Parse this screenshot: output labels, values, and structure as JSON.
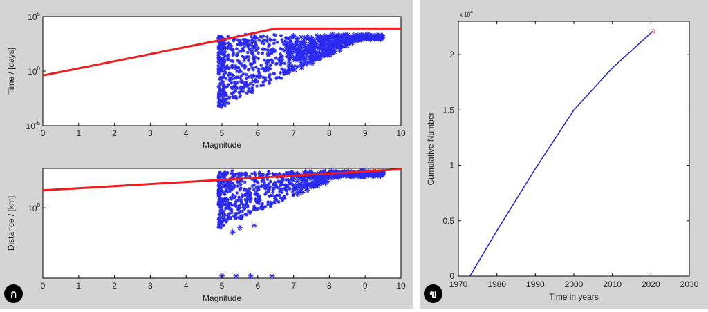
{
  "labels": {
    "left_panel_badge": "ก",
    "right_panel_badge": "ข"
  },
  "colors": {
    "panel_bg": "#d4d4d4",
    "axes_bg": "#ffffff",
    "scatter": "#2a2af0",
    "fit": "#ee1c1c",
    "cumulative_line": "#1c1cd8",
    "end_marker": "#ff6a6a"
  },
  "chart_data": [
    {
      "type": "scatter",
      "title": "",
      "xlabel": "Magnitude",
      "ylabel": "Time / [days]",
      "xlim": [
        0,
        10
      ],
      "ylim_log10": [
        -5,
        5
      ],
      "yscale": "log",
      "xticks": [
        "0",
        "1",
        "2",
        "3",
        "4",
        "5",
        "6",
        "7",
        "8",
        "9",
        "10"
      ],
      "yticks": [
        {
          "base": "10",
          "exp": "5",
          "log10": 5
        },
        {
          "base": "10",
          "exp": "0",
          "log10": 0
        },
        {
          "base": "10",
          "exp": "-5",
          "log10": -5
        }
      ],
      "scatter_x_range": [
        4.9,
        9.5
      ],
      "scatter_log10_range": [
        -3.3,
        3.4
      ],
      "fit_line": {
        "x": [
          0,
          4.9,
          6.5,
          10
        ],
        "log10y": [
          -0.4,
          2.8,
          3.9,
          3.9
        ]
      },
      "grid": false,
      "legend": "none"
    },
    {
      "type": "scatter",
      "title": "",
      "xlabel": "Magnitude",
      "ylabel": "Distance / [km]",
      "xlim": [
        0,
        10
      ],
      "ylim_log10": [
        -1.6,
        0.9
      ],
      "yscale": "log",
      "xticks": [
        "0",
        "1",
        "2",
        "3",
        "4",
        "5",
        "6",
        "7",
        "8",
        "9",
        "10"
      ],
      "yticks": [
        {
          "base": "10",
          "exp": "0",
          "log10": 0
        }
      ],
      "scatter_x_range": [
        4.9,
        9.5
      ],
      "scatter_log10_range": [
        -0.45,
        0.85
      ],
      "outliers": [
        {
          "x": 5.0,
          "log10y": -1.55
        },
        {
          "x": 5.4,
          "log10y": -1.55
        },
        {
          "x": 5.8,
          "log10y": -1.55
        },
        {
          "x": 6.4,
          "log10y": -1.55
        },
        {
          "x": 5.3,
          "log10y": -0.55
        },
        {
          "x": 5.9,
          "log10y": -0.4
        },
        {
          "x": 5.5,
          "log10y": -0.45
        }
      ],
      "fit_line": {
        "x": [
          0,
          10
        ],
        "log10y": [
          0.4,
          0.88
        ]
      },
      "grid": false,
      "legend": "none"
    },
    {
      "type": "line",
      "title": "",
      "xlabel": "Time in years",
      "ylabel": "Cumulative Number",
      "xlim": [
        1970,
        2030
      ],
      "ylim": [
        0,
        2.3
      ],
      "y_multiplier": {
        "base": "x 10",
        "exp": "4"
      },
      "xticks": [
        "1970",
        "1980",
        "1990",
        "2000",
        "2010",
        "2020",
        "2030"
      ],
      "yticks": [
        "0",
        "0.5",
        "1",
        "1.5",
        "2"
      ],
      "x": [
        1973,
        1980,
        1990,
        2000,
        2010,
        2020.5
      ],
      "y": [
        0,
        0.41,
        0.97,
        1.5,
        1.88,
        2.21
      ],
      "end_marker": {
        "x": 2020.5,
        "y": 2.21
      },
      "grid": false,
      "legend": "none"
    }
  ]
}
